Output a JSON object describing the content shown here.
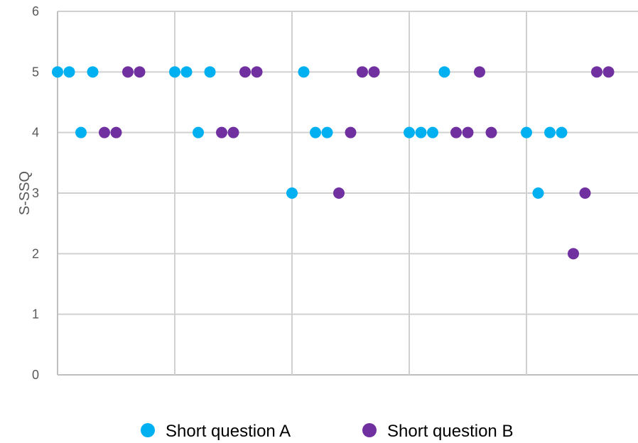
{
  "chart_data": {
    "type": "scatter",
    "title": "",
    "xlabel": "",
    "ylabel": "S-SSQ",
    "ylim": [
      0,
      6
    ],
    "yticks": [
      0,
      1,
      2,
      3,
      4,
      5,
      6
    ],
    "xlim": [
      0,
      50
    ],
    "xtick_positions": [
      0,
      10,
      20,
      30,
      40,
      50
    ],
    "grid": true,
    "legend": "bottom",
    "series": [
      {
        "name": "Short question A",
        "color": "#00b0f0",
        "points": [
          {
            "x": 0,
            "y": 5
          },
          {
            "x": 1,
            "y": 5
          },
          {
            "x": 2,
            "y": 4
          },
          {
            "x": 3,
            "y": 5
          },
          {
            "x": 10,
            "y": 5
          },
          {
            "x": 11,
            "y": 5
          },
          {
            "x": 12,
            "y": 4
          },
          {
            "x": 13,
            "y": 5
          },
          {
            "x": 20,
            "y": 3
          },
          {
            "x": 21,
            "y": 5
          },
          {
            "x": 22,
            "y": 4
          },
          {
            "x": 23,
            "y": 4
          },
          {
            "x": 30,
            "y": 4
          },
          {
            "x": 31,
            "y": 4
          },
          {
            "x": 32,
            "y": 4
          },
          {
            "x": 33,
            "y": 5
          },
          {
            "x": 40,
            "y": 4
          },
          {
            "x": 41,
            "y": 3
          },
          {
            "x": 42,
            "y": 4
          },
          {
            "x": 43,
            "y": 4
          }
        ]
      },
      {
        "name": "Short question B",
        "color": "#7030a0",
        "points": [
          {
            "x": 4,
            "y": 4
          },
          {
            "x": 5,
            "y": 4
          },
          {
            "x": 6,
            "y": 5
          },
          {
            "x": 7,
            "y": 5
          },
          {
            "x": 14,
            "y": 4
          },
          {
            "x": 15,
            "y": 4
          },
          {
            "x": 16,
            "y": 5
          },
          {
            "x": 17,
            "y": 5
          },
          {
            "x": 24,
            "y": 3
          },
          {
            "x": 25,
            "y": 4
          },
          {
            "x": 26,
            "y": 5
          },
          {
            "x": 27,
            "y": 5
          },
          {
            "x": 34,
            "y": 4
          },
          {
            "x": 35,
            "y": 4
          },
          {
            "x": 36,
            "y": 5
          },
          {
            "x": 37,
            "y": 4
          },
          {
            "x": 44,
            "y": 2
          },
          {
            "x": 45,
            "y": 3
          },
          {
            "x": 46,
            "y": 5
          },
          {
            "x": 47,
            "y": 5
          }
        ]
      }
    ]
  }
}
